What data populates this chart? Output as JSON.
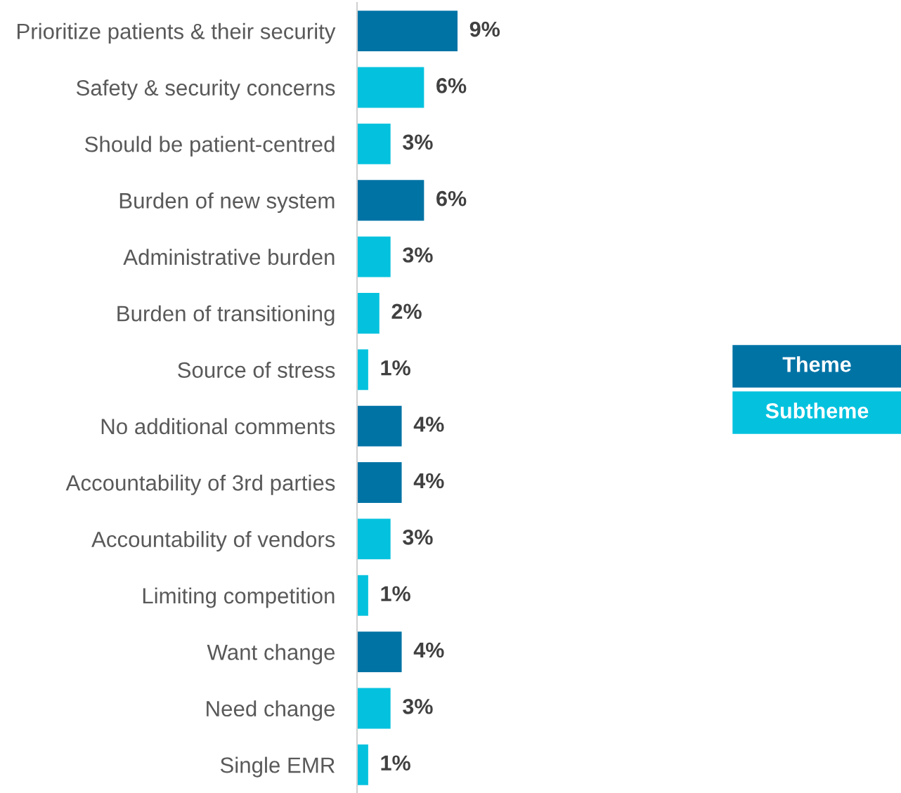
{
  "chart_data": {
    "type": "bar",
    "orientation": "horizontal",
    "categories": [
      "Prioritize patients & their security",
      "Safety & security concerns",
      "Should be patient-centred",
      "Burden of new system",
      "Administrative burden",
      "Burden of transitioning",
      "Source of stress",
      "No additional comments",
      "Accountability of 3rd parties",
      "Accountability of vendors",
      "Limiting competition",
      "Want change",
      "Need change",
      "Single EMR"
    ],
    "series": [
      {
        "name": "Theme",
        "color": "#0073a5",
        "values": [
          9,
          null,
          null,
          6,
          null,
          null,
          null,
          4,
          4,
          null,
          null,
          4,
          null,
          null
        ],
        "value_labels": [
          "9%",
          null,
          null,
          "6%",
          null,
          null,
          null,
          "4%",
          "4%",
          null,
          null,
          "4%",
          null,
          null
        ]
      },
      {
        "name": "Subtheme",
        "color": "#04c2de",
        "values": [
          null,
          6,
          3,
          null,
          3,
          2,
          1,
          null,
          null,
          3,
          1,
          null,
          3,
          1
        ],
        "value_labels": [
          null,
          "6%",
          "3%",
          null,
          "3%",
          "2%",
          "1%",
          null,
          null,
          "3%",
          "1%",
          null,
          "3%",
          "1%"
        ]
      }
    ],
    "legend": "right",
    "grid": false
  }
}
